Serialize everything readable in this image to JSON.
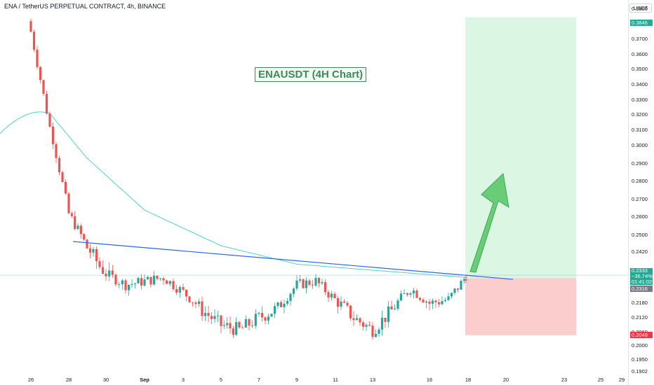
{
  "header": {
    "symbol_line": "ENA / TetherUS PERPETUAL CONTRACT, 4h, BINANCE"
  },
  "annotation": {
    "title": "ENAUSDT (4H Chart)"
  },
  "price_axis": {
    "currency": "USDT",
    "ticks": [
      "0.3900",
      "0.3800",
      "0.3700",
      "0.3600",
      "0.3500",
      "0.3400",
      "0.3300",
      "0.3200",
      "0.3100",
      "0.3000",
      "0.2900",
      "0.2800",
      "0.2700",
      "0.2600",
      "0.2500",
      "0.2420",
      "0.2360",
      "0.2180",
      "0.2120",
      "0.2060",
      "0.2000",
      "0.1950",
      "0.1902"
    ],
    "target_label": "0.3846",
    "current_label": {
      "price": "0.2333",
      "change": "−36.74%",
      "countdown": "01:41:02"
    },
    "level_label": "0.2316",
    "stop_label": "0.2048"
  },
  "time_axis": {
    "ticks": [
      {
        "text": "26",
        "bold": false
      },
      {
        "text": "28",
        "bold": false
      },
      {
        "text": "30",
        "bold": false
      },
      {
        "text": "Sep",
        "bold": true
      },
      {
        "text": "3",
        "bold": false
      },
      {
        "text": "5",
        "bold": false
      },
      {
        "text": "7",
        "bold": false
      },
      {
        "text": "9",
        "bold": false
      },
      {
        "text": "11",
        "bold": false
      },
      {
        "text": "13",
        "bold": false
      },
      {
        "text": "16",
        "bold": false
      },
      {
        "text": "18",
        "bold": false
      },
      {
        "text": "20",
        "bold": false
      },
      {
        "text": "23",
        "bold": false
      },
      {
        "text": "25",
        "bold": false
      },
      {
        "text": "29",
        "bold": false
      }
    ]
  },
  "colors": {
    "up": "#26a69a",
    "down": "#ef5350",
    "ma": "#4fd3c4",
    "trendline": "#2962ff",
    "target_zone": "#d6f5df",
    "stop_zone": "#fcc8c8",
    "arrow": "#5cc86a"
  },
  "chart_data": {
    "type": "candlestick",
    "title": "ENAUSDT (4H Chart)",
    "symbol": "ENA / TetherUS PERPETUAL CONTRACT, 4h, BINANCE",
    "y_unit": "USDT",
    "ylim": [
      0.1902,
      0.39
    ],
    "path_key_closes": [
      {
        "x": "26",
        "close": 0.375
      },
      {
        "x": "27",
        "close": 0.312
      },
      {
        "x": "28",
        "close": 0.262
      },
      {
        "x": "29",
        "close": 0.244
      },
      {
        "x": "30",
        "close": 0.234
      },
      {
        "x": "31",
        "close": 0.228
      },
      {
        "x": "Sep",
        "close": 0.23
      },
      {
        "x": "2",
        "close": 0.232
      },
      {
        "x": "3",
        "close": 0.224
      },
      {
        "x": "4",
        "close": 0.215
      },
      {
        "x": "5",
        "close": 0.209
      },
      {
        "x": "6",
        "close": 0.207
      },
      {
        "x": "7",
        "close": 0.212
      },
      {
        "x": "8",
        "close": 0.216
      },
      {
        "x": "9",
        "close": 0.228
      },
      {
        "x": "10",
        "close": 0.23
      },
      {
        "x": "11",
        "close": 0.22
      },
      {
        "x": "12",
        "close": 0.212
      },
      {
        "x": "13",
        "close": 0.207
      },
      {
        "x": "14",
        "close": 0.215
      },
      {
        "x": "15",
        "close": 0.226
      },
      {
        "x": "16",
        "close": 0.218
      },
      {
        "x": "17",
        "close": 0.22
      },
      {
        "x": "18",
        "close": 0.2333
      }
    ],
    "moving_average_approx": [
      {
        "x": "25",
        "value": 0.315
      },
      {
        "x": "27",
        "value": 0.321
      },
      {
        "x": "29",
        "value": 0.293
      },
      {
        "x": "Sep",
        "value": 0.264
      },
      {
        "x": "5",
        "value": 0.245
      },
      {
        "x": "9",
        "value": 0.238
      },
      {
        "x": "13",
        "value": 0.236
      },
      {
        "x": "18",
        "value": 0.232
      }
    ],
    "trendline": {
      "from": {
        "x": "28",
        "value": 0.247
      },
      "to": {
        "x": "20",
        "value": 0.231
      }
    },
    "position": {
      "entry": 0.2316,
      "target": 0.3846,
      "stop": 0.2048
    },
    "current_price": 0.2333,
    "change_pct": -36.74,
    "grid": false
  }
}
